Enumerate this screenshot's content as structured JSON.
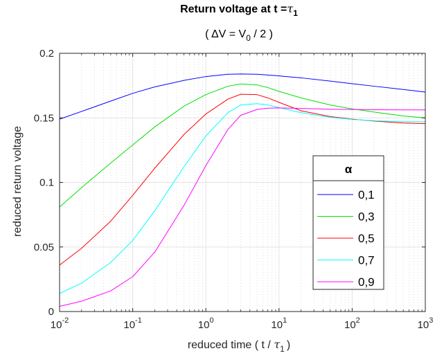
{
  "chart_data": {
    "type": "line",
    "title": "Return voltage at t =",
    "title_symbol": "τ",
    "title_symbol_sub": "1",
    "subtitle_open": "( ΔV = V",
    "subtitle_sub": "0",
    "subtitle_close": " / 2 )",
    "xlabel_prefix": "reduced time ( t / ",
    "xlabel_symbol": "τ",
    "xlabel_sub": "1",
    "xlabel_suffix": ")",
    "ylabel": "reduced return voltage",
    "xscale": "log",
    "xlim": [
      0.01,
      1000
    ],
    "ylim": [
      0,
      0.2
    ],
    "grid": true,
    "minor_grid": true,
    "x_ticks": [
      {
        "base": "10",
        "exp": "-2",
        "value": 0.01
      },
      {
        "base": "10",
        "exp": "-1",
        "value": 0.1
      },
      {
        "base": "10",
        "exp": "0",
        "value": 1
      },
      {
        "base": "10",
        "exp": "1",
        "value": 10
      },
      {
        "base": "10",
        "exp": "2",
        "value": 100
      },
      {
        "base": "10",
        "exp": "3",
        "value": 1000
      }
    ],
    "y_ticks": [
      {
        "label": "0",
        "value": 0
      },
      {
        "label": "0.05",
        "value": 0.05
      },
      {
        "label": "0.1",
        "value": 0.1
      },
      {
        "label": "0.15",
        "value": 0.15
      },
      {
        "label": "0.2",
        "value": 0.2
      }
    ],
    "legend_title": "α",
    "legend_position": "center-right",
    "x": [
      0.01,
      0.02,
      0.05,
      0.1,
      0.2,
      0.5,
      1,
      2,
      3,
      5,
      7,
      10,
      20,
      50,
      100,
      200,
      500,
      1000
    ],
    "series": [
      {
        "name": "0,1",
        "color": "#0000ff",
        "values": [
          0.149,
          0.155,
          0.163,
          0.169,
          0.174,
          0.179,
          0.182,
          0.1838,
          0.184,
          0.1838,
          0.1832,
          0.1825,
          0.181,
          0.1785,
          0.1765,
          0.1745,
          0.172,
          0.17
        ]
      },
      {
        "name": "0,3",
        "color": "#00e000",
        "values": [
          0.081,
          0.096,
          0.115,
          0.129,
          0.143,
          0.159,
          0.168,
          0.1745,
          0.1763,
          0.1755,
          0.1735,
          0.1705,
          0.1655,
          0.16,
          0.157,
          0.1545,
          0.1515,
          0.15
        ]
      },
      {
        "name": "0,5",
        "color": "#ff0000",
        "values": [
          0.036,
          0.049,
          0.07,
          0.09,
          0.111,
          0.137,
          0.153,
          0.1645,
          0.1683,
          0.168,
          0.1655,
          0.162,
          0.1555,
          0.151,
          0.149,
          0.1475,
          0.146,
          0.1455
        ]
      },
      {
        "name": "0,7",
        "color": "#00ffff",
        "values": [
          0.014,
          0.022,
          0.038,
          0.055,
          0.078,
          0.112,
          0.136,
          0.154,
          0.16,
          0.161,
          0.16,
          0.158,
          0.154,
          0.1505,
          0.1488,
          0.1478,
          0.147,
          0.147
        ]
      },
      {
        "name": "0,9",
        "color": "#ff00ff",
        "values": [
          0.004,
          0.008,
          0.016,
          0.027,
          0.046,
          0.082,
          0.113,
          0.141,
          0.152,
          0.1565,
          0.1575,
          0.1577,
          0.1573,
          0.1567,
          0.1565,
          0.1563,
          0.1562,
          0.1562
        ]
      }
    ]
  }
}
